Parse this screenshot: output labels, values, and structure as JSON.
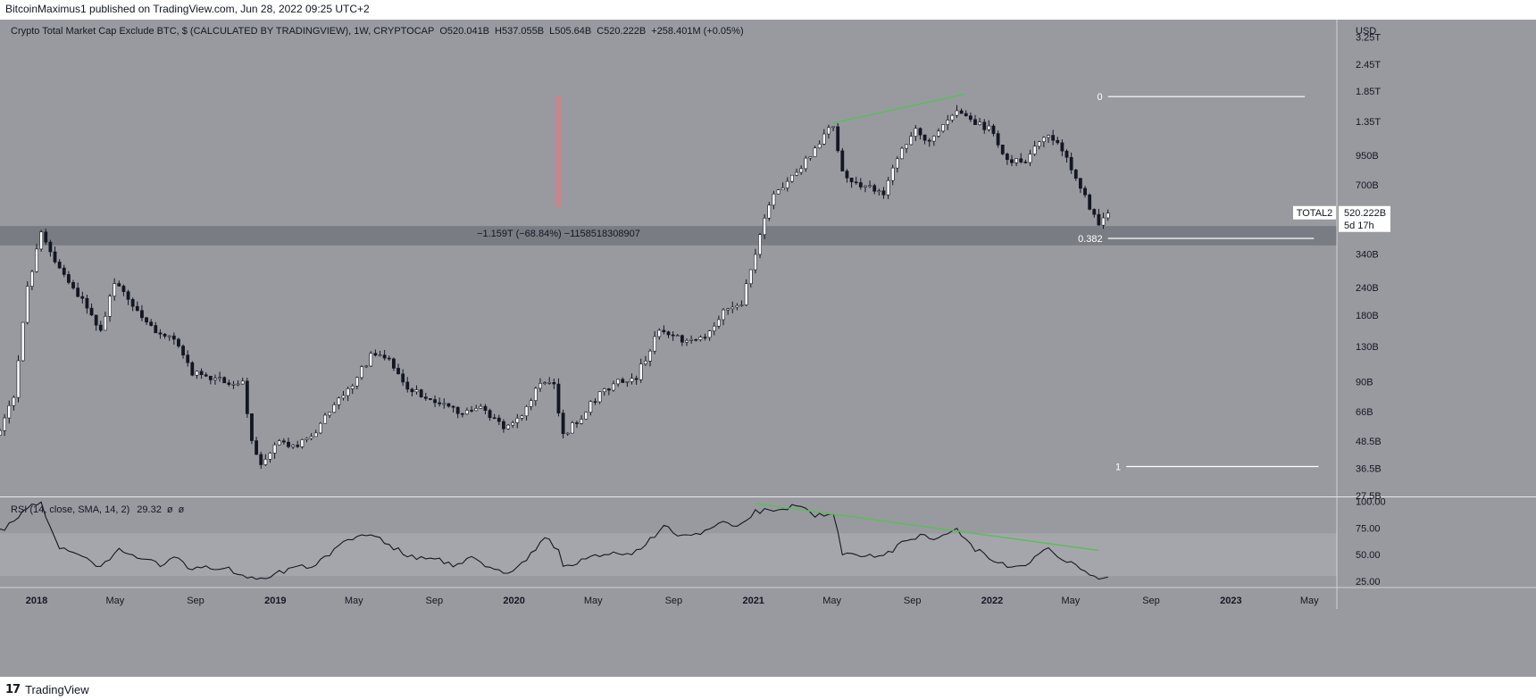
{
  "attribution": {
    "text": "BitcoinMaximus1 published on TradingView.com, Jun 28, 2022 09:25 UTC+2"
  },
  "footer": {
    "logo_glyph": "17",
    "brand": "TradingView"
  },
  "chart_data": [
    {
      "type": "candlestick",
      "title": "Crypto Total Market Cap Exclude BTC, $ (CALCULATED BY TRADINGVIEW), 1W, CRYPTOCAP",
      "ohlc_legend": {
        "o_label": "O",
        "o": "520.041B",
        "h_label": "H",
        "h": "537.055B",
        "l_label": "L",
        "l": "505.64B",
        "c_label": "C",
        "c": "520.222B",
        "change": "+258.401M (+0.05%)"
      },
      "currency_label": "USD",
      "y_scale": "log",
      "y_ticks": [
        "3.25T",
        "2.45T",
        "1.85T",
        "1.35T",
        "950B",
        "700B",
        "520.222B",
        "340B",
        "240B",
        "180B",
        "130B",
        "90B",
        "66B",
        "48.5B",
        "36.5B",
        "27.5B"
      ],
      "y_tick_values": [
        3250,
        2450,
        1850,
        1350,
        950,
        700,
        520,
        340,
        240,
        180,
        130,
        90,
        66,
        48.5,
        36.5,
        27.5
      ],
      "ylim": [
        27.5,
        3900
      ],
      "x_ticks": [
        "2018",
        "May",
        "Sep",
        "2019",
        "May",
        "Sep",
        "2020",
        "May",
        "Sep",
        "2021",
        "May",
        "Sep",
        "2022",
        "May",
        "Sep",
        "2023",
        "May"
      ],
      "x_tick_dates": [
        "2018-01-01",
        "2018-05-01",
        "2018-09-01",
        "2019-01-01",
        "2019-05-01",
        "2019-09-01",
        "2020-01-01",
        "2020-05-01",
        "2020-09-01",
        "2021-01-01",
        "2021-05-01",
        "2021-09-01",
        "2022-01-01",
        "2022-05-01",
        "2022-09-01",
        "2023-01-01",
        "2023-05-01"
      ],
      "xlim": [
        "2017-11-06",
        "2023-06-12"
      ],
      "price_label": {
        "symbol": "TOTAL2",
        "value": "520.222B",
        "countdown": "5d 17h",
        "y": 520
      },
      "anchors": [
        {
          "date": "2017-11-06",
          "value": 53
        },
        {
          "date": "2017-11-27",
          "value": 78
        },
        {
          "date": "2017-12-18",
          "value": 240
        },
        {
          "date": "2018-01-08",
          "value": 430
        },
        {
          "date": "2018-01-29",
          "value": 310
        },
        {
          "date": "2018-02-19",
          "value": 255
        },
        {
          "date": "2018-03-19",
          "value": 200
        },
        {
          "date": "2018-04-09",
          "value": 150
        },
        {
          "date": "2018-04-30",
          "value": 255
        },
        {
          "date": "2018-06-04",
          "value": 190
        },
        {
          "date": "2018-07-02",
          "value": 152
        },
        {
          "date": "2018-07-30",
          "value": 142
        },
        {
          "date": "2018-08-27",
          "value": 99
        },
        {
          "date": "2018-09-24",
          "value": 94
        },
        {
          "date": "2018-10-22",
          "value": 90
        },
        {
          "date": "2018-11-12",
          "value": 88
        },
        {
          "date": "2018-11-26",
          "value": 50
        },
        {
          "date": "2018-12-10",
          "value": 38
        },
        {
          "date": "2019-01-07",
          "value": 48
        },
        {
          "date": "2019-02-04",
          "value": 46
        },
        {
          "date": "2019-03-04",
          "value": 54
        },
        {
          "date": "2019-04-01",
          "value": 70
        },
        {
          "date": "2019-04-29",
          "value": 88
        },
        {
          "date": "2019-05-27",
          "value": 118
        },
        {
          "date": "2019-06-24",
          "value": 112
        },
        {
          "date": "2019-07-22",
          "value": 82
        },
        {
          "date": "2019-08-19",
          "value": 78
        },
        {
          "date": "2019-09-16",
          "value": 70
        },
        {
          "date": "2019-10-14",
          "value": 64
        },
        {
          "date": "2019-11-11",
          "value": 70
        },
        {
          "date": "2019-12-16",
          "value": 56
        },
        {
          "date": "2020-01-13",
          "value": 63
        },
        {
          "date": "2020-02-10",
          "value": 90
        },
        {
          "date": "2020-03-02",
          "value": 86
        },
        {
          "date": "2020-03-16",
          "value": 51
        },
        {
          "date": "2020-04-13",
          "value": 63
        },
        {
          "date": "2020-05-11",
          "value": 80
        },
        {
          "date": "2020-06-08",
          "value": 90
        },
        {
          "date": "2020-07-06",
          "value": 95
        },
        {
          "date": "2020-08-10",
          "value": 155
        },
        {
          "date": "2020-09-14",
          "value": 138
        },
        {
          "date": "2020-10-19",
          "value": 142
        },
        {
          "date": "2020-11-16",
          "value": 190
        },
        {
          "date": "2020-12-14",
          "value": 205
        },
        {
          "date": "2021-01-04",
          "value": 340
        },
        {
          "date": "2021-01-25",
          "value": 580
        },
        {
          "date": "2021-02-15",
          "value": 690
        },
        {
          "date": "2021-03-15",
          "value": 830
        },
        {
          "date": "2021-04-12",
          "value": 1100
        },
        {
          "date": "2021-05-03",
          "value": 1320
        },
        {
          "date": "2021-05-17",
          "value": 780
        },
        {
          "date": "2021-06-14",
          "value": 690
        },
        {
          "date": "2021-07-19",
          "value": 640
        },
        {
          "date": "2021-08-09",
          "value": 940
        },
        {
          "date": "2021-09-06",
          "value": 1250
        },
        {
          "date": "2021-09-27",
          "value": 1080
        },
        {
          "date": "2021-10-25",
          "value": 1360
        },
        {
          "date": "2021-11-08",
          "value": 1560
        },
        {
          "date": "2021-12-06",
          "value": 1320
        },
        {
          "date": "2021-12-27",
          "value": 1250
        },
        {
          "date": "2022-01-24",
          "value": 900
        },
        {
          "date": "2022-02-21",
          "value": 910
        },
        {
          "date": "2022-03-28",
          "value": 1200
        },
        {
          "date": "2022-04-25",
          "value": 930
        },
        {
          "date": "2022-05-16",
          "value": 680
        },
        {
          "date": "2022-06-13",
          "value": 450
        },
        {
          "date": "2022-06-27",
          "value": 520
        }
      ],
      "support_zone": {
        "low": 372,
        "high": 455,
        "x_from": "2017-11-06",
        "x_to": "2023-06-12"
      },
      "measure": {
        "x": "2020-03-09",
        "y_top": 1760,
        "y_bottom": 555,
        "label": "−1.159T (−68.84%) −1158518308907"
      },
      "price_divergence_line": {
        "x1": "2021-05-03",
        "y1": 1330,
        "x2": "2021-11-22",
        "y2": 1800
      },
      "fib_levels": [
        {
          "label": "0",
          "value": 1750,
          "x_from": "2022-06-27",
          "x_to": "2023-04-24"
        },
        {
          "label": "0.382",
          "value": 400,
          "x_from": "2022-06-27",
          "x_to": "2023-05-08"
        },
        {
          "label": "1",
          "value": 37.2,
          "x_from": "2022-07-25",
          "x_to": "2023-05-15"
        }
      ],
      "colors": {
        "background": "#999aa0",
        "up_candle": "#ffffff",
        "down_candle": "#131722",
        "divergence_line": "#5bbd5b",
        "measure": "#c9858a",
        "fib_line": "#ffffff",
        "support_zone": "#6f7178"
      }
    },
    {
      "type": "line",
      "title": "RSI (14, close, SMA, 14, 2)",
      "value_label": "29.32",
      "extra_labels": [
        "ø",
        "ø"
      ],
      "y_ticks": [
        "100.00",
        "75.00",
        "50.00",
        "25.00"
      ],
      "y_tick_values": [
        100,
        75,
        50,
        25
      ],
      "ylim": [
        20,
        103
      ],
      "band": [
        30,
        70
      ],
      "anchors": [
        {
          "date": "2017-11-06",
          "value": 72
        },
        {
          "date": "2017-11-27",
          "value": 82
        },
        {
          "date": "2017-12-18",
          "value": 95
        },
        {
          "date": "2018-01-08",
          "value": 97
        },
        {
          "date": "2018-02-05",
          "value": 57
        },
        {
          "date": "2018-03-05",
          "value": 50
        },
        {
          "date": "2018-04-09",
          "value": 38
        },
        {
          "date": "2018-05-07",
          "value": 54
        },
        {
          "date": "2018-06-11",
          "value": 46
        },
        {
          "date": "2018-07-09",
          "value": 40
        },
        {
          "date": "2018-07-30",
          "value": 48
        },
        {
          "date": "2018-08-27",
          "value": 36
        },
        {
          "date": "2018-09-24",
          "value": 38
        },
        {
          "date": "2018-10-22",
          "value": 36
        },
        {
          "date": "2018-11-19",
          "value": 28
        },
        {
          "date": "2018-12-17",
          "value": 28
        },
        {
          "date": "2019-01-21",
          "value": 36
        },
        {
          "date": "2019-03-04",
          "value": 40
        },
        {
          "date": "2019-04-08",
          "value": 58
        },
        {
          "date": "2019-05-06",
          "value": 66
        },
        {
          "date": "2019-06-03",
          "value": 68
        },
        {
          "date": "2019-07-08",
          "value": 54
        },
        {
          "date": "2019-08-05",
          "value": 45
        },
        {
          "date": "2019-09-02",
          "value": 48
        },
        {
          "date": "2019-09-30",
          "value": 40
        },
        {
          "date": "2019-10-28",
          "value": 46
        },
        {
          "date": "2019-11-25",
          "value": 38
        },
        {
          "date": "2019-12-23",
          "value": 33
        },
        {
          "date": "2020-01-20",
          "value": 45
        },
        {
          "date": "2020-02-17",
          "value": 68
        },
        {
          "date": "2020-03-09",
          "value": 54
        },
        {
          "date": "2020-03-16",
          "value": 38
        },
        {
          "date": "2020-04-20",
          "value": 46
        },
        {
          "date": "2020-05-18",
          "value": 52
        },
        {
          "date": "2020-06-15",
          "value": 50
        },
        {
          "date": "2020-07-13",
          "value": 54
        },
        {
          "date": "2020-08-17",
          "value": 78
        },
        {
          "date": "2020-09-14",
          "value": 66
        },
        {
          "date": "2020-10-12",
          "value": 70
        },
        {
          "date": "2020-11-09",
          "value": 80
        },
        {
          "date": "2020-12-07",
          "value": 77
        },
        {
          "date": "2021-01-04",
          "value": 90
        },
        {
          "date": "2021-02-15",
          "value": 93
        },
        {
          "date": "2021-03-08",
          "value": 97
        },
        {
          "date": "2021-04-05",
          "value": 87
        },
        {
          "date": "2021-05-03",
          "value": 88
        },
        {
          "date": "2021-05-17",
          "value": 52
        },
        {
          "date": "2021-06-21",
          "value": 50
        },
        {
          "date": "2021-07-19",
          "value": 47
        },
        {
          "date": "2021-08-16",
          "value": 62
        },
        {
          "date": "2021-09-13",
          "value": 68
        },
        {
          "date": "2021-10-11",
          "value": 66
        },
        {
          "date": "2021-11-08",
          "value": 73
        },
        {
          "date": "2021-12-06",
          "value": 55
        },
        {
          "date": "2022-01-03",
          "value": 46
        },
        {
          "date": "2022-01-24",
          "value": 38
        },
        {
          "date": "2022-02-21",
          "value": 42
        },
        {
          "date": "2022-03-28",
          "value": 56
        },
        {
          "date": "2022-04-25",
          "value": 44
        },
        {
          "date": "2022-05-23",
          "value": 33
        },
        {
          "date": "2022-06-13",
          "value": 28
        },
        {
          "date": "2022-06-27",
          "value": 29
        }
      ],
      "divergence_line": {
        "x1": "2021-01-04",
        "y1": 98,
        "x2": "2022-06-13",
        "y2": 54
      },
      "colors": {
        "line": "#131722",
        "band_fill": "#a6a7ac",
        "divergence_line": "#5bbd5b"
      }
    }
  ]
}
